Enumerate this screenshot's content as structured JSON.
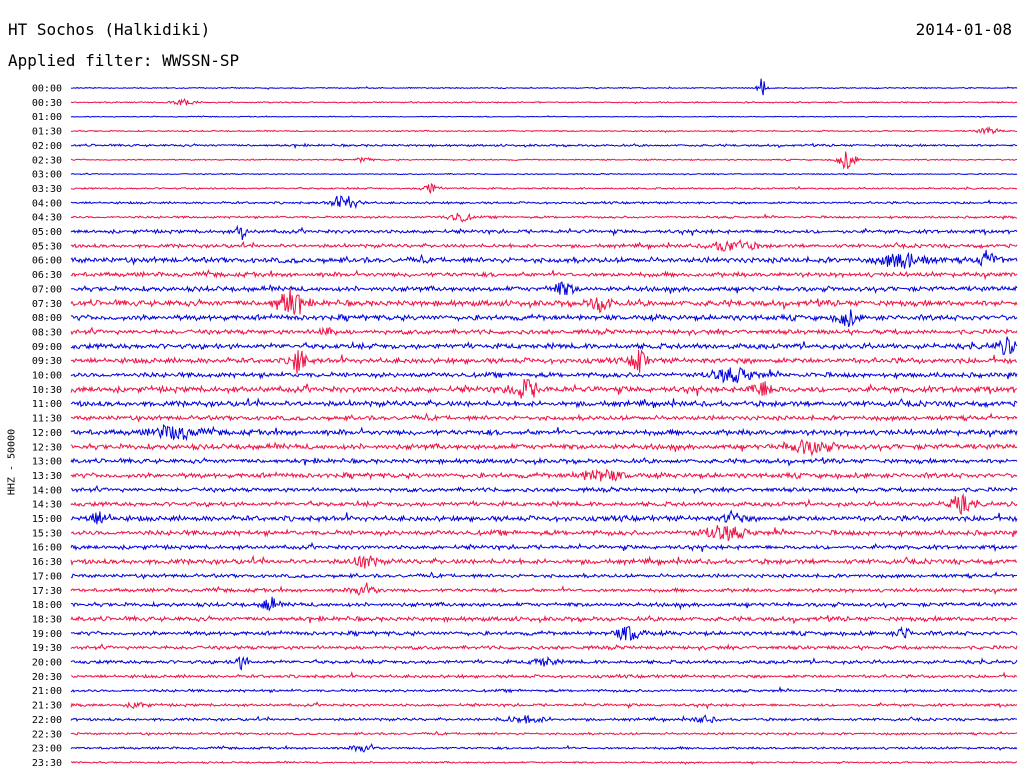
{
  "header": {
    "station": "HT Sochos (Halkidiki)",
    "date": "2014-01-08",
    "filter": "Applied filter: WWSSN-SP"
  },
  "axis": {
    "ylabel": "HHZ - 50000"
  },
  "colors": {
    "even_trace": "#0000dd",
    "odd_trace": "#ee1144"
  },
  "chart_data": {
    "type": "line",
    "title": "",
    "ylabel": "HHZ - 50000",
    "xlabel": "",
    "categories": [
      "00:00",
      "00:30",
      "01:00",
      "01:30",
      "02:00",
      "02:30",
      "03:00",
      "03:30",
      "04:00",
      "04:30",
      "05:00",
      "05:30",
      "06:00",
      "06:30",
      "07:00",
      "07:30",
      "08:00",
      "08:30",
      "09:00",
      "09:30",
      "10:00",
      "10:30",
      "11:00",
      "11:30",
      "12:00",
      "12:30",
      "13:00",
      "13:30",
      "14:00",
      "14:30",
      "15:00",
      "15:30",
      "16:00",
      "16:30",
      "17:00",
      "17:30",
      "18:00",
      "18:30",
      "19:00",
      "19:30",
      "20:00",
      "20:30",
      "21:00",
      "21:30",
      "22:00",
      "22:30",
      "23:00",
      "23:30"
    ],
    "noise_level": [
      0.5,
      0.6,
      0.4,
      0.6,
      1.0,
      0.6,
      0.5,
      0.8,
      1.0,
      1.0,
      1.6,
      1.6,
      2.4,
      2.0,
      2.2,
      2.6,
      2.4,
      2.0,
      2.4,
      2.4,
      2.2,
      2.6,
      2.4,
      2.0,
      2.4,
      2.4,
      2.0,
      2.2,
      1.8,
      2.0,
      2.4,
      2.2,
      1.8,
      2.2,
      1.6,
      1.6,
      1.8,
      2.0,
      1.8,
      1.6,
      1.6,
      1.4,
      1.2,
      1.2,
      1.2,
      1.0,
      1.0,
      0.8
    ],
    "bursts": [
      {
        "row": 0,
        "pos": 0.73,
        "amp": 9,
        "width": 0.004
      },
      {
        "row": 1,
        "pos": 0.12,
        "amp": 3,
        "width": 0.01
      },
      {
        "row": 3,
        "pos": 0.97,
        "amp": 3,
        "width": 0.01
      },
      {
        "row": 5,
        "pos": 0.82,
        "amp": 9,
        "width": 0.008
      },
      {
        "row": 5,
        "pos": 0.31,
        "amp": 3,
        "width": 0.006
      },
      {
        "row": 7,
        "pos": 0.38,
        "amp": 5,
        "width": 0.008
      },
      {
        "row": 8,
        "pos": 0.29,
        "amp": 7,
        "width": 0.012
      },
      {
        "row": 9,
        "pos": 0.41,
        "amp": 5,
        "width": 0.01
      },
      {
        "row": 10,
        "pos": 0.18,
        "amp": 8,
        "width": 0.004
      },
      {
        "row": 11,
        "pos": 0.7,
        "amp": 5,
        "width": 0.02
      },
      {
        "row": 12,
        "pos": 0.88,
        "amp": 7,
        "width": 0.02
      },
      {
        "row": 12,
        "pos": 0.97,
        "amp": 6,
        "width": 0.01
      },
      {
        "row": 14,
        "pos": 0.52,
        "amp": 6,
        "width": 0.01
      },
      {
        "row": 15,
        "pos": 0.23,
        "amp": 13,
        "width": 0.012
      },
      {
        "row": 15,
        "pos": 0.56,
        "amp": 7,
        "width": 0.01
      },
      {
        "row": 16,
        "pos": 0.82,
        "amp": 8,
        "width": 0.008
      },
      {
        "row": 17,
        "pos": 0.27,
        "amp": 6,
        "width": 0.006
      },
      {
        "row": 18,
        "pos": 0.99,
        "amp": 7,
        "width": 0.01
      },
      {
        "row": 19,
        "pos": 0.24,
        "amp": 14,
        "width": 0.006
      },
      {
        "row": 19,
        "pos": 0.6,
        "amp": 15,
        "width": 0.006
      },
      {
        "row": 20,
        "pos": 0.7,
        "amp": 6,
        "width": 0.02
      },
      {
        "row": 21,
        "pos": 0.48,
        "amp": 9,
        "width": 0.012
      },
      {
        "row": 21,
        "pos": 0.73,
        "amp": 7,
        "width": 0.01
      },
      {
        "row": 24,
        "pos": 0.11,
        "amp": 6,
        "width": 0.02
      },
      {
        "row": 25,
        "pos": 0.78,
        "amp": 6,
        "width": 0.02
      },
      {
        "row": 27,
        "pos": 0.56,
        "amp": 5,
        "width": 0.02
      },
      {
        "row": 29,
        "pos": 0.94,
        "amp": 8,
        "width": 0.01
      },
      {
        "row": 30,
        "pos": 0.03,
        "amp": 6,
        "width": 0.01
      },
      {
        "row": 30,
        "pos": 0.7,
        "amp": 6,
        "width": 0.008
      },
      {
        "row": 31,
        "pos": 0.69,
        "amp": 6,
        "width": 0.02
      },
      {
        "row": 33,
        "pos": 0.31,
        "amp": 6,
        "width": 0.01
      },
      {
        "row": 35,
        "pos": 0.31,
        "amp": 6,
        "width": 0.01
      },
      {
        "row": 36,
        "pos": 0.21,
        "amp": 7,
        "width": 0.006
      },
      {
        "row": 38,
        "pos": 0.59,
        "amp": 7,
        "width": 0.012
      },
      {
        "row": 38,
        "pos": 0.88,
        "amp": 6,
        "width": 0.006
      },
      {
        "row": 40,
        "pos": 0.18,
        "amp": 6,
        "width": 0.006
      },
      {
        "row": 40,
        "pos": 0.5,
        "amp": 4,
        "width": 0.01
      },
      {
        "row": 43,
        "pos": 0.07,
        "amp": 3,
        "width": 0.008
      },
      {
        "row": 44,
        "pos": 0.48,
        "amp": 3,
        "width": 0.02
      },
      {
        "row": 44,
        "pos": 0.67,
        "amp": 3,
        "width": 0.01
      },
      {
        "row": 46,
        "pos": 0.31,
        "amp": 4,
        "width": 0.01
      }
    ]
  }
}
